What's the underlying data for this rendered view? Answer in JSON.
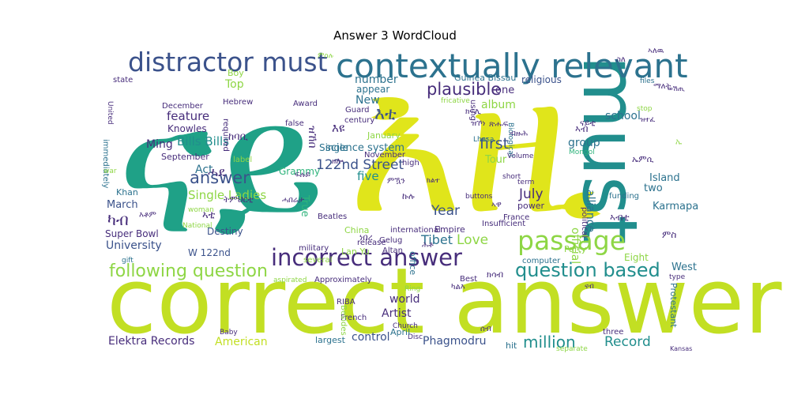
{
  "title": "Answer 3 WordCloud",
  "palette": {
    "yellow": "#e0e51b",
    "lime": "#c2df23",
    "green": "#8ed645",
    "sea": "#2fb47c",
    "teal": "#1fa187",
    "tealdark": "#218e8d",
    "blue": "#2c728e",
    "indigo": "#3b528b",
    "purple": "#472d7b",
    "dark": "#440154"
  },
  "words": [
    {
      "text": "ናይ",
      "color": "teal"
    },
    {
      "text": "እዚ",
      "color": "yellow"
    },
    {
      "text": "correct answer",
      "color": "lime"
    },
    {
      "text": "must",
      "color": "tealdark"
    },
    {
      "text": "contextually relevant",
      "color": "blue"
    },
    {
      "text": "distractor must",
      "color": "indigo"
    },
    {
      "text": "incorrect answer",
      "color": "purple"
    },
    {
      "text": "passage",
      "color": "green"
    },
    {
      "text": "question based",
      "color": "tealdark"
    },
    {
      "text": "following question",
      "color": "green"
    },
    {
      "text": "answer",
      "color": "indigo"
    },
    {
      "text": "plausible",
      "color": "purple"
    },
    {
      "text": "እቲ",
      "color": "indigo"
    },
    {
      "text": "122nd Street",
      "color": "indigo"
    },
    {
      "text": "million",
      "color": "tealdark"
    },
    {
      "text": "Record",
      "color": "tealdark"
    },
    {
      "text": "world",
      "color": "purple"
    },
    {
      "text": "Artist",
      "color": "purple"
    },
    {
      "text": "Elektra Records",
      "color": "purple"
    },
    {
      "text": "American",
      "color": "lime"
    },
    {
      "text": "control",
      "color": "indigo"
    },
    {
      "text": "Phagmodru",
      "color": "indigo"
    },
    {
      "text": "Single Ladies",
      "color": "green"
    },
    {
      "text": "Bills Bills",
      "color": "tealdark"
    },
    {
      "text": "feature",
      "color": "purple"
    },
    {
      "text": "Knowles",
      "color": "purple"
    },
    {
      "text": "Ming",
      "color": "purple"
    },
    {
      "text": "Act",
      "color": "blue"
    },
    {
      "text": "March",
      "color": "indigo"
    },
    {
      "text": "ካብ",
      "color": "purple"
    },
    {
      "text": "University",
      "color": "indigo"
    },
    {
      "text": "W 122nd",
      "color": "indigo"
    },
    {
      "text": "Super Bowl",
      "color": "purple"
    },
    {
      "text": "Destiny",
      "color": "indigo"
    },
    {
      "text": "Khan",
      "color": "blue"
    },
    {
      "text": "Year",
      "color": "indigo"
    },
    {
      "text": "Love",
      "color": "green"
    },
    {
      "text": "Tibet",
      "color": "blue"
    },
    {
      "text": "Empire",
      "color": "purple"
    },
    {
      "text": "July",
      "color": "purple"
    },
    {
      "text": "power",
      "color": "purple"
    },
    {
      "text": "first",
      "color": "indigo"
    },
    {
      "text": "Tour",
      "color": "green"
    },
    {
      "text": "album",
      "color": "green"
    },
    {
      "text": "group",
      "color": "blue"
    },
    {
      "text": "alliance",
      "color": "blue"
    },
    {
      "text": "school",
      "color": "blue"
    },
    {
      "text": "Island",
      "color": "blue"
    },
    {
      "text": "two",
      "color": "blue"
    },
    {
      "text": "Karmapa",
      "color": "blue"
    },
    {
      "text": "West",
      "color": "blue"
    },
    {
      "text": "Eight",
      "color": "green"
    },
    {
      "text": "official",
      "color": "green"
    },
    {
      "text": "New",
      "color": "blue"
    },
    {
      "text": "number",
      "color": "blue"
    },
    {
      "text": "appear",
      "color": "blue"
    },
    {
      "text": "one",
      "color": "purple"
    },
    {
      "text": "science system",
      "color": "blue"
    },
    {
      "text": "Single",
      "color": "blue"
    },
    {
      "text": "Guinea Bissau",
      "color": "blue"
    },
    {
      "text": "religious",
      "color": "indigo"
    },
    {
      "text": "Top",
      "color": "green"
    },
    {
      "text": "Boy",
      "color": "green"
    },
    {
      "text": "state",
      "color": "purple"
    },
    {
      "text": "Hebrew",
      "color": "purple"
    },
    {
      "text": "December",
      "color": "purple"
    },
    {
      "text": "Award",
      "color": "purple"
    },
    {
      "text": "September",
      "color": "purple"
    },
    {
      "text": "Grammy",
      "color": "sea"
    },
    {
      "text": "label",
      "color": "green"
    },
    {
      "text": "required",
      "color": "purple"
    },
    {
      "text": "false",
      "color": "purple"
    },
    {
      "text": "Guard",
      "color": "purple"
    },
    {
      "text": "century",
      "color": "purple"
    },
    {
      "text": "January",
      "color": "green"
    },
    {
      "text": "November",
      "color": "purple"
    },
    {
      "text": "five",
      "color": "tealdark"
    },
    {
      "text": "high",
      "color": "purple"
    },
    {
      "text": "China",
      "color": "green"
    },
    {
      "text": "True",
      "color": "sea"
    },
    {
      "text": "Beatles",
      "color": "purple"
    },
    {
      "text": "international",
      "color": "purple"
    },
    {
      "text": "Gelug",
      "color": "purple"
    },
    {
      "text": "release",
      "color": "purple"
    },
    {
      "text": "military",
      "color": "purple"
    },
    {
      "text": "Lan Yu",
      "color": "green"
    },
    {
      "text": "Altan",
      "color": "purple"
    },
    {
      "text": "several",
      "color": "green"
    },
    {
      "text": "Approximately",
      "color": "purple"
    },
    {
      "text": "aspirated",
      "color": "green"
    },
    {
      "text": "Best",
      "color": "purple"
    },
    {
      "text": "Ring",
      "color": "green"
    },
    {
      "text": "RIBA",
      "color": "purple"
    },
    {
      "text": "French",
      "color": "purple"
    },
    {
      "text": "Besides",
      "color": "green"
    },
    {
      "text": "largest",
      "color": "blue"
    },
    {
      "text": "Church",
      "color": "purple"
    },
    {
      "text": "Disc",
      "color": "purple"
    },
    {
      "text": "April",
      "color": "blue"
    },
    {
      "text": "hit",
      "color": "blue"
    },
    {
      "text": "separate",
      "color": "green"
    },
    {
      "text": "three",
      "color": "purple"
    },
    {
      "text": "Kansas",
      "color": "purple"
    },
    {
      "text": "Protestant",
      "color": "blue"
    },
    {
      "text": "type",
      "color": "purple"
    },
    {
      "text": "computer",
      "color": "blue"
    },
    {
      "text": "France",
      "color": "purple"
    },
    {
      "text": "Insufficient",
      "color": "purple"
    },
    {
      "text": "funding",
      "color": "blue"
    },
    {
      "text": "political",
      "color": "purple"
    },
    {
      "text": "buttons",
      "color": "purple"
    },
    {
      "text": "term",
      "color": "purple"
    },
    {
      "text": "short",
      "color": "purple"
    },
    {
      "text": "Volume",
      "color": "purple"
    },
    {
      "text": "Biological",
      "color": "blue"
    },
    {
      "text": "Lhasa",
      "color": "blue"
    },
    {
      "text": "Mongol",
      "color": "sea"
    },
    {
      "text": "fricative",
      "color": "green"
    },
    {
      "text": "using",
      "color": "purple"
    },
    {
      "text": "files",
      "color": "blue"
    },
    {
      "text": "stop",
      "color": "green"
    },
    {
      "text": "Party",
      "color": "green"
    },
    {
      "text": "office",
      "color": "blue"
    },
    {
      "text": "gift",
      "color": "blue"
    },
    {
      "text": "woman",
      "color": "green"
    },
    {
      "text": "National",
      "color": "green"
    },
    {
      "text": "immediately",
      "color": "blue"
    },
    {
      "text": "United",
      "color": "purple"
    },
    {
      "text": "war",
      "color": "green"
    },
    {
      "text": "Baby",
      "color": "purple"
    },
    {
      "text": "ሓደ",
      "color": "purple"
    },
    {
      "text": "እዩ",
      "color": "purple"
    },
    {
      "text": "ዝኸበ",
      "color": "purple"
    },
    {
      "text": "ከባቢ",
      "color": "purple"
    },
    {
      "text": "ኣቲ",
      "color": "purple"
    },
    {
      "text": "እቶም",
      "color": "purple"
    },
    {
      "text": "ሓበሬታ",
      "color": "purple"
    },
    {
      "text": "ትምህርቲ",
      "color": "purple"
    },
    {
      "text": "ኣብቲ",
      "color": "purple"
    },
    {
      "text": "ምስ",
      "color": "purple"
    },
    {
      "text": "ክሳብ",
      "color": "purple"
    },
    {
      "text": "ኣዋ",
      "color": "purple"
    },
    {
      "text": "ናብ",
      "color": "purple"
    },
    {
      "text": "ናይቲ",
      "color": "purple"
    },
    {
      "text": "ዝተፈ",
      "color": "purple"
    },
    {
      "text": "ኣለዉ",
      "color": "purple"
    },
    {
      "text": "ማለት",
      "color": "purple"
    },
    {
      "text": "ስለ",
      "color": "purple"
    },
    {
      "text": "ምስሉ",
      "color": "green"
    },
    {
      "text": "ኣብ",
      "color": "purple"
    },
    {
      "text": "ወሽጢ",
      "color": "purple"
    },
    {
      "text": "ኢ",
      "color": "green"
    },
    {
      "text": "ኤምሲ",
      "color": "purple"
    },
    {
      "text": "ክልተ",
      "color": "purple"
    },
    {
      "text": "ዘሎ",
      "color": "purple"
    },
    {
      "text": "ነበረ",
      "color": "purple"
    },
    {
      "text": "ክፍሊ",
      "color": "purple"
    },
    {
      "text": "ጽሑፍ",
      "color": "purple"
    },
    {
      "text": "ዝኾነ",
      "color": "purple"
    },
    {
      "text": "ምዃን",
      "color": "purple"
    },
    {
      "text": "ኩሉ",
      "color": "purple"
    },
    {
      "text": "ፍሉይ",
      "color": "purple"
    },
    {
      "text": "ሕቶ",
      "color": "purple"
    },
    {
      "text": "ካልእ",
      "color": "purple"
    },
    {
      "text": "ሰብ",
      "color": "purple"
    },
    {
      "text": "ብዙሕ",
      "color": "purple"
    }
  ]
}
